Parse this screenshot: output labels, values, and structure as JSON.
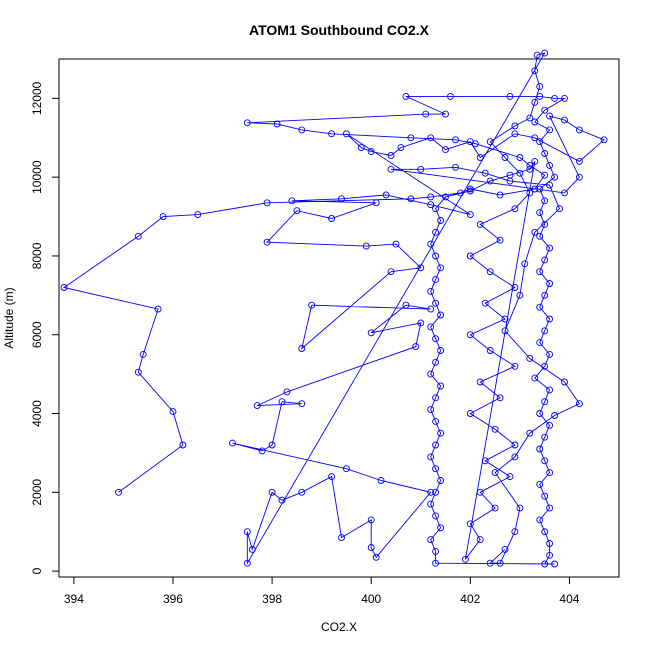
{
  "chart_data": {
    "type": "line",
    "title": "ATOM1 Southbound CO2.X",
    "xlabel": "CO2.X",
    "ylabel": "Altitude (m)",
    "xlim": [
      393.7,
      405.0
    ],
    "ylim": [
      -150,
      13000
    ],
    "x_ticks": [
      394,
      396,
      398,
      400,
      402,
      404
    ],
    "y_ticks": [
      0,
      2000,
      4000,
      6000,
      8000,
      10000,
      12000
    ],
    "grid": false,
    "legend": "none",
    "colors": {
      "series": "#0000ff",
      "axis": "#000000",
      "background": "#ffffff"
    },
    "series": [
      {
        "marker": "open-circle",
        "points": [
          [
            394.9,
            2000
          ],
          [
            396.2,
            3200
          ],
          [
            396.0,
            4050
          ],
          [
            395.3,
            5050
          ],
          [
            395.4,
            5500
          ],
          [
            395.7,
            6650
          ],
          [
            393.8,
            7200
          ],
          [
            395.3,
            8500
          ],
          [
            395.8,
            9000
          ],
          [
            396.5,
            9050
          ],
          [
            397.9,
            9350
          ],
          [
            400.8,
            9450
          ],
          [
            401.2,
            9500
          ],
          [
            401.8,
            9600
          ],
          [
            402.0,
            9700
          ],
          [
            402.6,
            9550
          ],
          [
            403.3,
            9700
          ],
          [
            403.5,
            10050
          ],
          [
            403.2,
            10300
          ],
          [
            403.0,
            10500
          ],
          [
            402.1,
            10850
          ],
          [
            401.7,
            10950
          ],
          [
            400.8,
            11000
          ],
          [
            399.2,
            11100
          ],
          [
            398.6,
            11200
          ],
          [
            398.1,
            11350
          ],
          [
            397.5,
            11380
          ],
          [
            401.1,
            11600
          ],
          [
            401.5,
            11600
          ],
          [
            400.7,
            12050
          ],
          [
            401.6,
            12050
          ],
          [
            402.8,
            12050
          ],
          [
            403.4,
            12050
          ],
          [
            403.7,
            12000
          ],
          [
            403.9,
            12000
          ],
          [
            403.5,
            11700
          ],
          [
            403.3,
            11400
          ],
          [
            403.6,
            11200
          ],
          [
            403.4,
            10900
          ],
          [
            403.5,
            10600
          ],
          [
            403.6,
            10300
          ],
          [
            403.7,
            10000
          ],
          [
            403.4,
            9700
          ],
          [
            403.5,
            9400
          ],
          [
            403.4,
            9100
          ],
          [
            403.5,
            8800
          ],
          [
            403.4,
            8500
          ],
          [
            403.6,
            8200
          ],
          [
            403.5,
            7900
          ],
          [
            403.4,
            7600
          ],
          [
            403.6,
            7300
          ],
          [
            403.5,
            7000
          ],
          [
            403.4,
            6700
          ],
          [
            403.6,
            6400
          ],
          [
            403.5,
            6100
          ],
          [
            403.4,
            5800
          ],
          [
            403.6,
            5500
          ],
          [
            403.5,
            5200
          ],
          [
            403.3,
            4900
          ],
          [
            403.6,
            4600
          ],
          [
            403.5,
            4300
          ],
          [
            403.4,
            4000
          ],
          [
            403.6,
            3700
          ],
          [
            403.5,
            3400
          ],
          [
            403.4,
            3100
          ],
          [
            403.5,
            2800
          ],
          [
            403.6,
            2500
          ],
          [
            403.4,
            2200
          ],
          [
            403.5,
            1900
          ],
          [
            403.6,
            1600
          ],
          [
            403.4,
            1300
          ],
          [
            403.5,
            1000
          ],
          [
            403.6,
            700
          ],
          [
            403.6,
            400
          ],
          [
            403.5,
            180
          ],
          [
            403.7,
            180
          ],
          [
            401.3,
            200
          ],
          [
            401.3,
            500
          ],
          [
            401.2,
            800
          ],
          [
            401.4,
            1100
          ],
          [
            401.3,
            1400
          ],
          [
            401.2,
            1700
          ],
          [
            401.3,
            2000
          ],
          [
            401.4,
            2300
          ],
          [
            401.3,
            2600
          ],
          [
            401.2,
            2900
          ],
          [
            401.3,
            3200
          ],
          [
            401.4,
            3500
          ],
          [
            401.3,
            3800
          ],
          [
            401.2,
            4100
          ],
          [
            401.3,
            4400
          ],
          [
            401.4,
            4700
          ],
          [
            401.2,
            5000
          ],
          [
            401.3,
            5300
          ],
          [
            401.4,
            5600
          ],
          [
            401.3,
            5900
          ],
          [
            401.2,
            6200
          ],
          [
            401.4,
            6500
          ],
          [
            401.3,
            6800
          ],
          [
            401.2,
            7100
          ],
          [
            401.3,
            7400
          ],
          [
            401.4,
            7700
          ],
          [
            401.3,
            8000
          ],
          [
            401.2,
            8300
          ],
          [
            401.3,
            8600
          ],
          [
            401.4,
            8900
          ],
          [
            401.3,
            9200
          ],
          [
            401.5,
            9500
          ],
          [
            402.0,
            9650
          ],
          [
            402.4,
            9900
          ],
          [
            402.8,
            10050
          ],
          [
            403.2,
            10200
          ],
          [
            403.3,
            10400
          ],
          [
            401.9,
            300
          ],
          [
            402.2,
            800
          ],
          [
            402.0,
            1200
          ],
          [
            402.5,
            1600
          ],
          [
            402.2,
            2000
          ],
          [
            402.8,
            2400
          ],
          [
            402.3,
            2800
          ],
          [
            402.9,
            3200
          ],
          [
            402.5,
            3600
          ],
          [
            402.0,
            4000
          ],
          [
            402.6,
            4400
          ],
          [
            402.2,
            4800
          ],
          [
            402.9,
            5200
          ],
          [
            402.4,
            5600
          ],
          [
            402.0,
            6000
          ],
          [
            402.7,
            6400
          ],
          [
            402.3,
            6800
          ],
          [
            402.9,
            7200
          ],
          [
            402.4,
            7600
          ],
          [
            402.0,
            8000
          ],
          [
            402.6,
            8400
          ],
          [
            402.2,
            8800
          ],
          [
            402.9,
            9200
          ],
          [
            403.2,
            9600
          ],
          [
            403.0,
            10100
          ],
          [
            402.7,
            10500
          ],
          [
            402.4,
            10900
          ],
          [
            402.9,
            11300
          ],
          [
            403.2,
            11500
          ],
          [
            403.3,
            11900
          ],
          [
            403.4,
            12300
          ],
          [
            403.3,
            12700
          ],
          [
            403.35,
            13100
          ],
          [
            403.5,
            13150
          ],
          [
            397.5,
            200
          ],
          [
            397.5,
            1000
          ],
          [
            397.6,
            550
          ],
          [
            398.0,
            2000
          ],
          [
            398.2,
            1800
          ],
          [
            398.6,
            2000
          ],
          [
            399.2,
            2400
          ],
          [
            399.4,
            850
          ],
          [
            400.0,
            1300
          ],
          [
            400.0,
            600
          ],
          [
            400.1,
            350
          ],
          [
            401.2,
            2000
          ],
          [
            400.2,
            2300
          ],
          [
            399.5,
            2600
          ],
          [
            397.2,
            3250
          ],
          [
            397.8,
            3050
          ],
          [
            398.0,
            3200
          ],
          [
            398.2,
            4300
          ],
          [
            398.6,
            4250
          ],
          [
            397.7,
            4200
          ],
          [
            398.3,
            4550
          ],
          [
            400.9,
            5700
          ],
          [
            401.0,
            6300
          ],
          [
            400.0,
            6050
          ],
          [
            400.7,
            6750
          ],
          [
            401.2,
            6650
          ],
          [
            398.8,
            6750
          ],
          [
            398.6,
            5650
          ],
          [
            400.4,
            7600
          ],
          [
            401.0,
            7700
          ],
          [
            400.5,
            8300
          ],
          [
            399.9,
            8250
          ],
          [
            397.9,
            8350
          ],
          [
            398.5,
            9150
          ],
          [
            399.2,
            8950
          ],
          [
            400.1,
            9350
          ],
          [
            398.4,
            9400
          ],
          [
            399.4,
            9450
          ],
          [
            400.3,
            9550
          ],
          [
            401.2,
            9300
          ],
          [
            402.0,
            9050
          ],
          [
            399.5,
            11100
          ],
          [
            399.8,
            10750
          ],
          [
            400.0,
            10650
          ],
          [
            400.4,
            10550
          ],
          [
            400.6,
            10750
          ],
          [
            401.2,
            11000
          ],
          [
            401.5,
            10700
          ],
          [
            402.0,
            10900
          ],
          [
            402.2,
            10500
          ],
          [
            402.9,
            11100
          ],
          [
            403.3,
            11000
          ],
          [
            404.2,
            10400
          ],
          [
            404.7,
            10950
          ],
          [
            404.2,
            11200
          ],
          [
            403.9,
            11450
          ],
          [
            403.6,
            11550
          ],
          [
            404.2,
            10000
          ],
          [
            403.9,
            9600
          ],
          [
            400.4,
            10200
          ],
          [
            401.0,
            10200
          ],
          [
            401.7,
            10250
          ],
          [
            402.3,
            10100
          ],
          [
            402.8,
            9900
          ],
          [
            403.6,
            9800
          ],
          [
            403.8,
            9200
          ],
          [
            403.3,
            8600
          ],
          [
            403.1,
            7800
          ],
          [
            403.0,
            7000
          ],
          [
            402.7,
            6100
          ],
          [
            403.2,
            5400
          ],
          [
            403.9,
            4800
          ],
          [
            404.2,
            4250
          ],
          [
            403.7,
            3950
          ],
          [
            403.2,
            3500
          ],
          [
            402.9,
            2900
          ],
          [
            402.5,
            2500
          ],
          [
            403.0,
            1600
          ],
          [
            402.9,
            1000
          ],
          [
            402.6,
            200
          ],
          [
            402.4,
            200
          ],
          [
            402.7,
            550
          ]
        ]
      }
    ]
  }
}
